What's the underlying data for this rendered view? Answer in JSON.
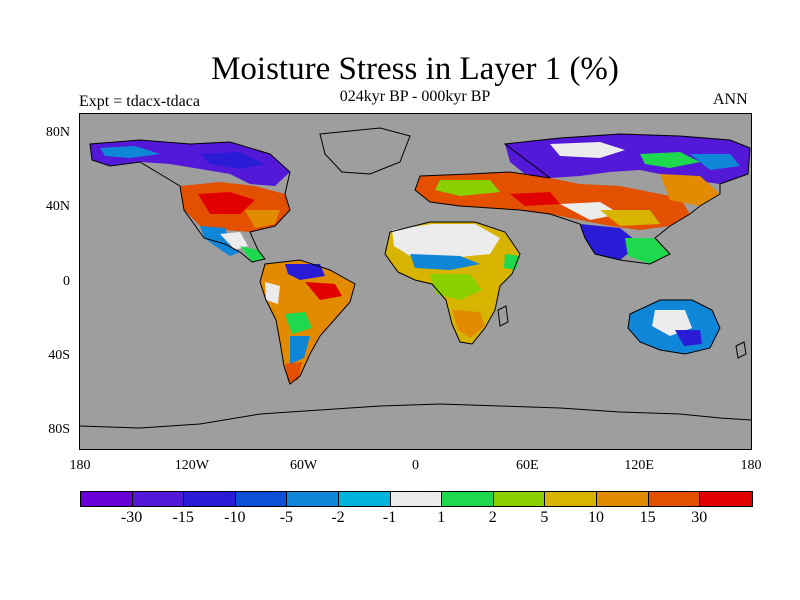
{
  "title": "Moisture Stress in Layer 1 (%)",
  "experiment": "Expt = tdacx-tdaca",
  "period": "024kyr BP - 000kyr BP",
  "season": "ANN",
  "colors": {
    "ocean": "#9e9e9e",
    "coastline": "#000000"
  },
  "lat_labels": [
    {
      "label": "80N",
      "lat": 80
    },
    {
      "label": "40N",
      "lat": 40
    },
    {
      "label": "0",
      "lat": 0
    },
    {
      "label": "40S",
      "lat": -40
    },
    {
      "label": "80S",
      "lat": -80
    }
  ],
  "lon_labels": [
    {
      "label": "180",
      "lon": -180
    },
    {
      "label": "120W",
      "lon": -120
    },
    {
      "label": "60W",
      "lon": -60
    },
    {
      "label": "0",
      "lon": 0
    },
    {
      "label": "60E",
      "lon": 60
    },
    {
      "label": "120E",
      "lon": 120
    },
    {
      "label": "180",
      "lon": 180
    }
  ],
  "colorbar": {
    "colors": [
      "#6a00d8",
      "#5318d8",
      "#2a1cd6",
      "#0d4fd6",
      "#0f86d8",
      "#00b3dc",
      "#ececec",
      "#1ed84e",
      "#8ad000",
      "#d6b400",
      "#e28a00",
      "#e25000",
      "#e00000"
    ],
    "labels": [
      "-30",
      "-15",
      "-10",
      "-5",
      "-2",
      "-1",
      "1",
      "2",
      "5",
      "10",
      "15",
      "30"
    ]
  }
}
